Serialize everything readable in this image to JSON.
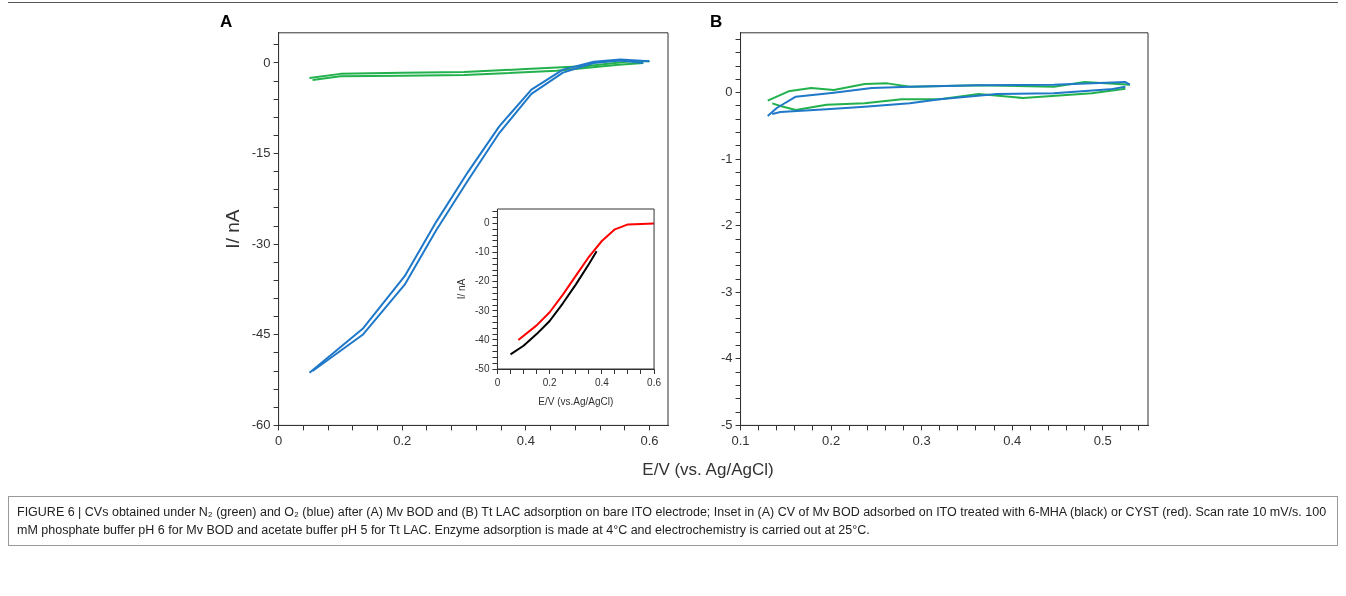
{
  "chart_data": [
    {
      "type": "line",
      "title": "A",
      "xlabel": "E/V (vs. Ag/AgCl)",
      "ylabel": "I/ nA",
      "marker": "none",
      "grid": false,
      "legend": false,
      "xlim": [
        0,
        0.63
      ],
      "ylim": [
        -60,
        5
      ],
      "xticks": [
        0,
        {
          "value": 0.04,
          "label": null
        },
        {
          "value": 0.08,
          "label": null
        },
        {
          "value": 0.12,
          "label": null
        },
        {
          "value": 0.16,
          "label": null
        },
        0.2,
        {
          "value": 0.24,
          "label": null
        },
        {
          "value": 0.28,
          "label": null
        },
        {
          "value": 0.32,
          "label": null
        },
        {
          "value": 0.36,
          "label": null
        },
        0.4,
        {
          "value": 0.44,
          "label": null
        },
        {
          "value": 0.48,
          "label": null
        },
        {
          "value": 0.52,
          "label": null
        },
        {
          "value": 0.56,
          "label": null
        },
        0.6
      ],
      "yticks": [
        -60,
        {
          "value": -57,
          "label": null
        },
        {
          "value": -54,
          "label": null
        },
        {
          "value": -51,
          "label": null
        },
        {
          "value": -48,
          "label": null
        },
        -45,
        {
          "value": -42,
          "label": null
        },
        {
          "value": -39,
          "label": null
        },
        {
          "value": -36,
          "label": null
        },
        {
          "value": -33,
          "label": null
        },
        -30,
        {
          "value": -27,
          "label": null
        },
        {
          "value": -24,
          "label": null
        },
        {
          "value": -21,
          "label": null
        },
        {
          "value": -18,
          "label": null
        },
        -15,
        {
          "value": -12,
          "label": null
        },
        {
          "value": -9,
          "label": null
        },
        {
          "value": -6,
          "label": null
        },
        {
          "value": -3,
          "label": null
        },
        0,
        {
          "value": 3,
          "label": null
        }
      ],
      "series": [
        {
          "color": "#22b14c",
          "x": [
            0.05,
            0.1,
            0.2,
            0.3,
            0.4,
            0.5,
            0.57,
            0.6
          ],
          "values": [
            -2.5,
            -1.8,
            -1.6,
            -1.5,
            -1.0,
            -0.5,
            0.3,
            0.3
          ]
        },
        {
          "color": "#22b14c",
          "x": [
            0.055,
            0.1,
            0.2,
            0.3,
            0.45,
            0.55,
            0.59
          ],
          "values": [
            -2.8,
            -2.2,
            -2.1,
            -2.0,
            -1.3,
            -0.3,
            0.0
          ]
        },
        {
          "color": "#1f78c8",
          "x": [
            0.05,
            0.136,
            0.204,
            0.255,
            0.306,
            0.357,
            0.409,
            0.46,
            0.51,
            0.553,
            0.6
          ],
          "values": [
            -51.3,
            -44.0,
            -35.3,
            -26.3,
            -18.1,
            -10.5,
            -4.4,
            -1.1,
            0.2,
            0.6,
            0.3
          ]
        },
        {
          "color": "#1f78c8",
          "x": [
            0.055,
            0.136,
            0.204,
            0.255,
            0.306,
            0.357,
            0.409,
            0.46,
            0.51,
            0.553,
            0.59
          ],
          "values": [
            -51.0,
            -45.0,
            -36.7,
            -27.7,
            -19.5,
            -11.6,
            -5.1,
            -1.6,
            0.0,
            0.4,
            0.0
          ]
        }
      ],
      "annotations": [
        "FIGURE 6 | CVs obtained under N₂ (green) and O₂ (blue) after (A) Mv BOD and (B) Tt LAC adsorption on bare ITO electrode; Inset in (A) CV of Mv BOD adsorbed on ITO treated with 6-MHA (black) or CYST (red). Scan rate 10 mV/s. 100 mM phosphate buffer pH 6 for Mv BOD and acetate buffer pH 5 for Tt LAC. Enzyme adsorption is made at 4°C and electrochemistry is carried out at 25°C."
      ]
    },
    {
      "type": "line",
      "xlabel": "E/V (vs.Ag/AgCl)",
      "ylabel": "I/ nA",
      "marker": "none",
      "grid": false,
      "legend": false,
      "xlim": [
        0,
        0.6
      ],
      "ylim": [
        -50,
        5
      ],
      "xticks": [
        0,
        {
          "value": 0.05,
          "label": null
        },
        {
          "value": 0.1,
          "label": null
        },
        {
          "value": 0.15,
          "label": null
        },
        0.2,
        {
          "value": 0.25,
          "label": null
        },
        {
          "value": 0.3,
          "label": null
        },
        {
          "value": 0.35,
          "label": null
        },
        0.4,
        {
          "value": 0.45,
          "label": null
        },
        {
          "value": 0.5,
          "label": null
        },
        {
          "value": 0.55,
          "label": null
        },
        0.6
      ],
      "yticks": [
        -50,
        {
          "value": -48,
          "label": null
        },
        {
          "value": -46,
          "label": null
        },
        {
          "value": -44,
          "label": null
        },
        {
          "value": -42,
          "label": null
        },
        -40,
        {
          "value": -38,
          "label": null
        },
        {
          "value": -36,
          "label": null
        },
        {
          "value": -34,
          "label": null
        },
        {
          "value": -32,
          "label": null
        },
        -30,
        {
          "value": -28,
          "label": null
        },
        {
          "value": -26,
          "label": null
        },
        {
          "value": -24,
          "label": null
        },
        {
          "value": -22,
          "label": null
        },
        -20,
        {
          "value": -18,
          "label": null
        },
        {
          "value": -16,
          "label": null
        },
        {
          "value": -14,
          "label": null
        },
        {
          "value": -12,
          "label": null
        },
        -10,
        {
          "value": -8,
          "label": null
        },
        {
          "value": -6,
          "label": null
        },
        {
          "value": -4,
          "label": null
        },
        {
          "value": -2,
          "label": null
        },
        0,
        {
          "value": 2,
          "label": null
        },
        {
          "value": 4,
          "label": null
        }
      ],
      "series": [
        {
          "color": "#000000",
          "x": [
            0.05,
            0.1,
            0.15,
            0.2,
            0.25,
            0.3,
            0.35,
            0.38
          ],
          "values": [
            -45,
            -42,
            -38,
            -33.5,
            -27.5,
            -21,
            -14,
            -9.5
          ]
        },
        {
          "color": "#ff0000",
          "x": [
            0.08,
            0.15,
            0.2,
            0.25,
            0.3,
            0.35,
            0.4,
            0.45,
            0.5,
            0.6
          ],
          "values": [
            -40,
            -35,
            -30.5,
            -24.5,
            -18,
            -11.5,
            -6,
            -2,
            -0.3,
            0
          ]
        }
      ]
    },
    {
      "type": "line",
      "title": "B",
      "marker": "none",
      "grid": false,
      "legend": false,
      "xlim": [
        0.1,
        0.55
      ],
      "ylim": [
        -5,
        0.9
      ],
      "xticks": [
        0.1,
        {
          "value": 0.12,
          "label": null
        },
        {
          "value": 0.14,
          "label": null
        },
        {
          "value": 0.16,
          "label": null
        },
        {
          "value": 0.18,
          "label": null
        },
        0.2,
        {
          "value": 0.22,
          "label": null
        },
        {
          "value": 0.24,
          "label": null
        },
        {
          "value": 0.26,
          "label": null
        },
        {
          "value": 0.28,
          "label": null
        },
        0.3,
        {
          "value": 0.32,
          "label": null
        },
        {
          "value": 0.34,
          "label": null
        },
        {
          "value": 0.36,
          "label": null
        },
        {
          "value": 0.38,
          "label": null
        },
        0.4,
        {
          "value": 0.42,
          "label": null
        },
        {
          "value": 0.44,
          "label": null
        },
        {
          "value": 0.46,
          "label": null
        },
        {
          "value": 0.48,
          "label": null
        },
        0.5,
        {
          "value": 0.52,
          "label": null
        },
        {
          "value": 0.54,
          "label": null
        }
      ],
      "yticks": [
        -5,
        {
          "value": -4.8,
          "label": null
        },
        {
          "value": -4.6,
          "label": null
        },
        {
          "value": -4.4,
          "label": null
        },
        {
          "value": -4.2,
          "label": null
        },
        -4,
        {
          "value": -3.8,
          "label": null
        },
        {
          "value": -3.6,
          "label": null
        },
        {
          "value": -3.4,
          "label": null
        },
        {
          "value": -3.2,
          "label": null
        },
        -3,
        {
          "value": -2.8,
          "label": null
        },
        {
          "value": -2.6,
          "label": null
        },
        {
          "value": -2.4,
          "label": null
        },
        {
          "value": -2.2,
          "label": null
        },
        -2,
        {
          "value": -1.8,
          "label": null
        },
        {
          "value": -1.6,
          "label": null
        },
        {
          "value": -1.4,
          "label": null
        },
        {
          "value": -1.2,
          "label": null
        },
        -1,
        {
          "value": -0.8,
          "label": null
        },
        {
          "value": -0.6,
          "label": null
        },
        {
          "value": -0.4,
          "label": null
        },
        {
          "value": -0.2,
          "label": null
        },
        0,
        {
          "value": 0.2,
          "label": null
        },
        {
          "value": 0.4,
          "label": null
        },
        {
          "value": 0.6,
          "label": null
        },
        {
          "value": 0.8,
          "label": null
        }
      ],
      "series": [
        {
          "color": "#22b14c",
          "x": [
            0.13,
            0.153,
            0.178,
            0.203,
            0.237,
            0.262,
            0.287,
            0.363,
            0.446,
            0.48,
            0.53
          ],
          "values": [
            -0.12,
            0.02,
            0.07,
            0.04,
            0.13,
            0.14,
            0.09,
            0.11,
            0.09,
            0.16,
            0.12
          ]
        },
        {
          "color": "#22b14c",
          "x": [
            0.135,
            0.144,
            0.161,
            0.195,
            0.237,
            0.278,
            0.32,
            0.363,
            0.412,
            0.488,
            0.525
          ],
          "values": [
            -0.16,
            -0.2,
            -0.26,
            -0.18,
            -0.16,
            -0.1,
            -0.1,
            -0.02,
            -0.08,
            -0.01,
            0.06
          ]
        },
        {
          "color": "#1f78c8",
          "x": [
            0.13,
            0.14,
            0.161,
            0.203,
            0.245,
            0.287,
            0.363,
            0.446,
            0.525,
            0.53
          ],
          "values": [
            -0.35,
            -0.23,
            -0.06,
            0.0,
            0.07,
            0.09,
            0.11,
            0.12,
            0.16,
            0.12
          ]
        },
        {
          "color": "#1f78c8",
          "x": [
            0.135,
            0.144,
            0.195,
            0.237,
            0.287,
            0.32,
            0.383,
            0.446,
            0.508,
            0.525
          ],
          "values": [
            -0.32,
            -0.29,
            -0.25,
            -0.21,
            -0.16,
            -0.1,
            -0.02,
            -0.01,
            0.05,
            0.09
          ]
        }
      ]
    }
  ]
}
